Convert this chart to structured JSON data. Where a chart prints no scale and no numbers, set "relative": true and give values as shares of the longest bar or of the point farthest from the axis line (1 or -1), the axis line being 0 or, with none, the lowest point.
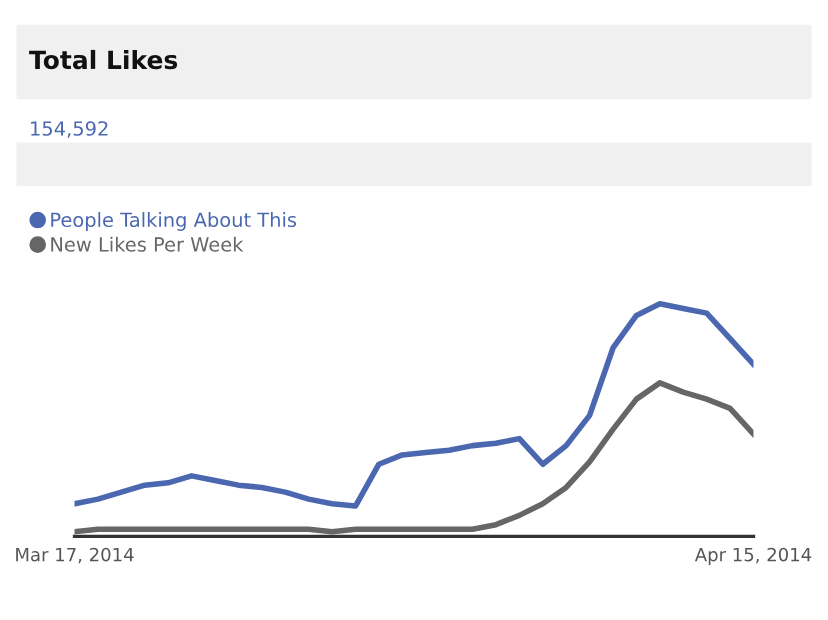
{
  "chart_data": {
    "type": "line",
    "title": "Total Likes",
    "subtitle": "154,592",
    "relative": true,
    "x": [
      "2014-03-17",
      "2014-03-18",
      "2014-03-19",
      "2014-03-20",
      "2014-03-21",
      "2014-03-22",
      "2014-03-23",
      "2014-03-24",
      "2014-03-25",
      "2014-03-26",
      "2014-03-27",
      "2014-03-28",
      "2014-03-29",
      "2014-03-30",
      "2014-03-31",
      "2014-04-01",
      "2014-04-02",
      "2014-04-03",
      "2014-04-04",
      "2014-04-05",
      "2014-04-06",
      "2014-04-07",
      "2014-04-08",
      "2014-04-09",
      "2014-04-10",
      "2014-04-11",
      "2014-04-12",
      "2014-04-13",
      "2014-04-14",
      "2014-04-15"
    ],
    "xlim": [
      "2014-03-17",
      "2014-04-15"
    ],
    "xticks": [
      {
        "value": "2014-03-17",
        "label": "Mar 17, 2014"
      },
      {
        "value": "2014-04-15",
        "label": "Apr 15, 2014"
      }
    ],
    "series": [
      {
        "name": "People Talking About This",
        "color": "#4a67b0",
        "values": [
          0.14,
          0.16,
          0.19,
          0.22,
          0.23,
          0.26,
          0.24,
          0.22,
          0.21,
          0.19,
          0.16,
          0.14,
          0.13,
          0.31,
          0.35,
          0.36,
          0.37,
          0.39,
          0.4,
          0.42,
          0.31,
          0.39,
          0.52,
          0.81,
          0.95,
          1,
          0.98,
          0.96,
          0.85,
          0.74
        ]
      },
      {
        "name": "New Likes Per Week",
        "color": "#666666",
        "values": [
          0.02,
          0.03,
          0.03,
          0.03,
          0.03,
          0.03,
          0.03,
          0.03,
          0.03,
          0.03,
          0.03,
          0.02,
          0.03,
          0.03,
          0.03,
          0.03,
          0.03,
          0.03,
          0.05,
          0.09,
          0.14,
          0.21,
          0.32,
          0.46,
          0.59,
          0.66,
          0.62,
          0.59,
          0.55,
          0.44
        ]
      }
    ],
    "legend": "top left",
    "grid": false,
    "marker": "none",
    "line_style": "solid"
  }
}
